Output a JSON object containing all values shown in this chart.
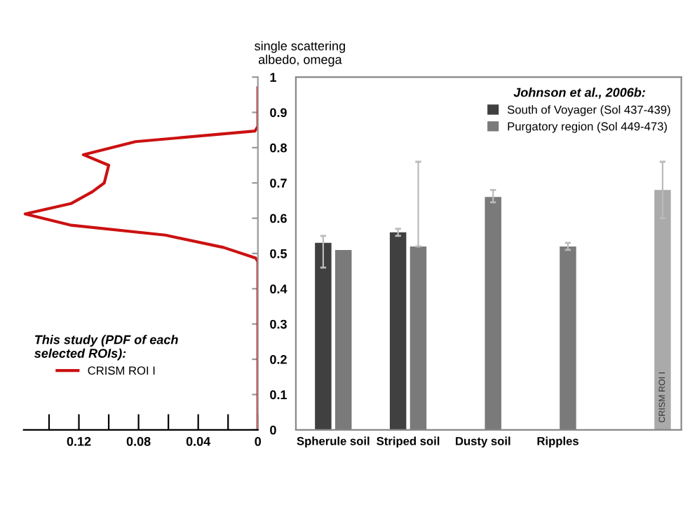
{
  "chart_data": [
    {
      "type": "line",
      "xlim": [
        0.157,
        0
      ],
      "xticks": [
        {
          "value": 0.14,
          "label": null
        },
        0.12,
        {
          "value": 0.1,
          "label": null
        },
        0.08,
        {
          "value": 0.06,
          "label": null
        },
        0.04,
        {
          "value": 0.02,
          "label": null
        },
        0
      ],
      "ylim": [
        0,
        1
      ],
      "yticks": [
        0,
        0.1,
        0.2,
        0.3,
        0.4,
        0.5,
        0.6,
        0.7,
        0.8,
        0.9,
        1
      ],
      "ylabel": "single scattering\nalbedo, omega",
      "legend": "bottom left",
      "legend_title": "This study (PDF of each\nselected ROIs):",
      "grid": false,
      "series": [
        {
          "name": "CRISM ROI I",
          "color": "#cc1111",
          "x": [
            0,
            0,
            0.0015,
            0.023,
            0.062,
            0.125,
            0.156,
            0.125,
            0.111,
            0.103,
            0.1,
            0.117,
            0.082,
            0.002,
            0,
            0
          ],
          "values": [
            0,
            0.477,
            0.487,
            0.517,
            0.552,
            0.58,
            0.612,
            0.642,
            0.675,
            0.7,
            0.75,
            0.78,
            0.817,
            0.847,
            0.86,
            0.97
          ]
        }
      ]
    },
    {
      "type": "bar",
      "categories": [
        "Spherule soil",
        "Striped soil",
        "Dusty soil",
        "Ripples",
        null
      ],
      "ylim": [
        0,
        1
      ],
      "yticks": [
        0,
        0.1,
        0.2,
        0.3,
        0.4,
        0.5,
        0.6,
        0.7,
        0.8,
        0.9,
        1
      ],
      "tick_labels": "x",
      "legend": "top right",
      "legend_title": "Johnson et al., 2006b:",
      "grid": false,
      "series": [
        {
          "name": "South of Voyager (Sol 437-439)",
          "color": "#404040",
          "values": [
            0.53,
            0.56,
            null,
            null,
            null
          ],
          "errors": [
            [
              0.46,
              0.55
            ],
            [
              0.55,
              0.57
            ],
            null,
            null,
            null
          ]
        },
        {
          "name": "Purgatory region (Sol 449-473)",
          "color": "#7a7a7a",
          "values": [
            0.51,
            0.52,
            0.66,
            0.52,
            null
          ],
          "errors": [
            null,
            [
              0.52,
              0.76
            ],
            [
              0.645,
              0.68
            ],
            [
              0.51,
              0.53
            ],
            null
          ]
        },
        {
          "name": "CRISM ROI I",
          "color": "#aaaaaa",
          "values": [
            null,
            null,
            null,
            null,
            0.68
          ],
          "errors": [
            null,
            null,
            null,
            null,
            [
              0.6,
              0.76
            ]
          ]
        }
      ]
    }
  ]
}
